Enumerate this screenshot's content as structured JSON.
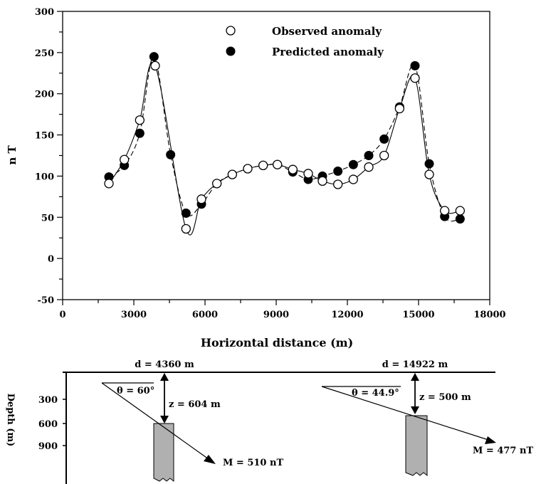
{
  "chart_data": [
    {
      "type": "line",
      "xlabel": "Horizontal distance (m)",
      "ylabel": "n T",
      "xlim": [
        0,
        18000
      ],
      "ylim": [
        -50,
        300
      ],
      "xticks": [
        0,
        3000,
        6000,
        9000,
        12000,
        15000,
        18000
      ],
      "yticks": [
        -50,
        0,
        50,
        100,
        150,
        200,
        250,
        300
      ],
      "legend_position": "top-center",
      "series": [
        {
          "name": "Observed anomaly",
          "marker": "open-circle",
          "line": "solid",
          "points": [
            [
              1950,
              91
            ],
            [
              2600,
              120
            ],
            [
              3250,
              168
            ],
            [
              3900,
              234
            ],
            [
              5200,
              36
            ],
            [
              5850,
              72
            ],
            [
              6500,
              91
            ],
            [
              7150,
              102
            ],
            [
              7800,
              109
            ],
            [
              8450,
              113
            ],
            [
              9050,
              114
            ],
            [
              9700,
              108
            ],
            [
              10350,
              103
            ],
            [
              10950,
              94
            ],
            [
              11600,
              90
            ],
            [
              12250,
              96
            ],
            [
              12900,
              111
            ],
            [
              13550,
              125
            ],
            [
              14200,
              182
            ],
            [
              14850,
              219
            ],
            [
              15450,
              102
            ],
            [
              16100,
              58
            ],
            [
              16750,
              58
            ]
          ]
        },
        {
          "name": "Predicted anomaly",
          "marker": "filled-circle",
          "line": "dashed",
          "points": [
            [
              1950,
              99
            ],
            [
              2600,
              113
            ],
            [
              3250,
              152
            ],
            [
              3850,
              245
            ],
            [
              4550,
              126
            ],
            [
              5200,
              55
            ],
            [
              5850,
              66
            ],
            [
              6500,
              91
            ],
            [
              7150,
              102
            ],
            [
              7800,
              109
            ],
            [
              8450,
              113
            ],
            [
              9050,
              114
            ],
            [
              9700,
              105
            ],
            [
              10350,
              96
            ],
            [
              10950,
              100
            ],
            [
              11600,
              106
            ],
            [
              12250,
              114
            ],
            [
              12900,
              125
            ],
            [
              13550,
              145
            ],
            [
              14200,
              184
            ],
            [
              14850,
              234
            ],
            [
              15450,
              115
            ],
            [
              16100,
              51
            ],
            [
              16750,
              48
            ]
          ]
        }
      ]
    },
    {
      "type": "diagram",
      "ylabel": "Depth (m)",
      "depth_ticks": [
        300,
        600,
        900
      ],
      "bodies": [
        {
          "d_label": "d = 4360 m",
          "z_label": "z = 604 m",
          "theta_label": "θ = 60°",
          "m_label": "M = 510 nT",
          "d": 4360,
          "z": 604
        },
        {
          "d_label": "d = 14922 m",
          "z_label": "z = 500 m",
          "theta_label": "θ = 44.9°",
          "m_label": "M = 477 nT",
          "d": 14922,
          "z": 500
        }
      ]
    }
  ]
}
